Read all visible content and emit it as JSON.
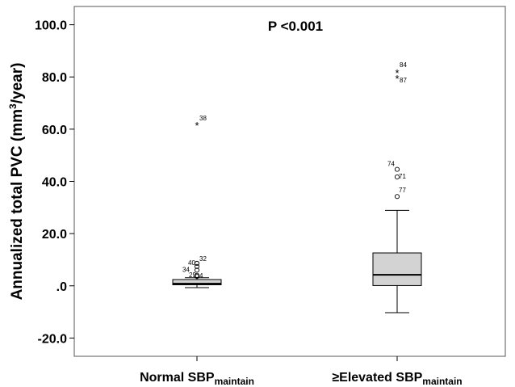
{
  "chart_data": {
    "type": "boxplot",
    "ylabel_main": "Annualized total PVC (mm",
    "ylabel_sup": "3",
    "ylabel_end": "/year)",
    "ylim": [
      -27.0,
      107.0
    ],
    "yticks": [
      -20.0,
      0.0,
      20.0,
      40.0,
      60.0,
      80.0,
      100.0
    ],
    "ytick_labels": [
      "-20.0",
      ".0",
      "20.0",
      "40.0",
      "60.0",
      "80.0",
      "100.0"
    ],
    "annotation": "P <0.001",
    "grid": false,
    "box_color": "#d3d3d3",
    "categories": [
      {
        "main": "Normal SBP",
        "sub": "maintain"
      },
      {
        "main": "≥Elevated SBP",
        "sub": "maintain"
      }
    ],
    "groups": [
      {
        "whisker_low": -0.7,
        "q1": 0.4,
        "median": 0.8,
        "q3": 2.4,
        "whisker_high": 3.1,
        "outliers": [
          {
            "label": "38",
            "value": 61.5,
            "marker": "star"
          },
          {
            "label": "32",
            "value": 8.6,
            "marker": "circle"
          },
          {
            "label": "40",
            "value": 7.4,
            "marker": "circle"
          },
          {
            "label": "34",
            "value": 6.0,
            "marker": "circle"
          },
          {
            "label": "29",
            "value": 4.0,
            "marker": "circle"
          },
          {
            "label": "4",
            "value": 3.6,
            "marker": "circle"
          }
        ]
      },
      {
        "whisker_low": -10.3,
        "q1": 0.1,
        "median": 4.2,
        "q3": 12.6,
        "whisker_high": 28.9,
        "outliers": [
          {
            "label": "84",
            "value": 81.6,
            "marker": "star"
          },
          {
            "label": "87",
            "value": 79.4,
            "marker": "star"
          },
          {
            "label": "74",
            "value": 44.6,
            "marker": "circle"
          },
          {
            "label": "71",
            "value": 41.7,
            "marker": "circle"
          },
          {
            "label": "77",
            "value": 34.2,
            "marker": "circle"
          }
        ]
      }
    ]
  }
}
